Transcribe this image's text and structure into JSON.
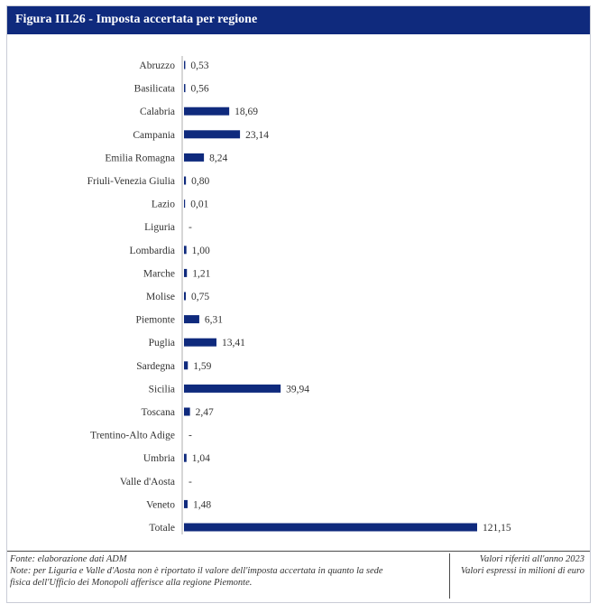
{
  "figure_title": "Figura III.26 - Imposta accertata per regione",
  "colors": {
    "bar": "#0f2a7d",
    "title_bg": "#0f2a7d",
    "text": "#333333"
  },
  "chart_data": {
    "type": "bar",
    "orientation": "horizontal",
    "title": "Imposta accertata per regione",
    "xlabel": "",
    "ylabel": "",
    "xlim": [
      0,
      121.15
    ],
    "grid": false,
    "legend": "none",
    "categories": [
      "Abruzzo",
      "Basilicata",
      "Calabria",
      "Campania",
      "Emilia Romagna",
      "Friuli-Venezia Giulia",
      "Lazio",
      "Liguria",
      "Lombardia",
      "Marche",
      "Molise",
      "Piemonte",
      "Puglia",
      "Sardegna",
      "Sicilia",
      "Toscana",
      "Trentino-Alto Adige",
      "Umbria",
      "Valle d'Aosta",
      "Veneto",
      "Totale"
    ],
    "values": [
      0.53,
      0.56,
      18.69,
      23.14,
      8.24,
      0.8,
      0.01,
      null,
      1.0,
      1.21,
      0.75,
      6.31,
      13.41,
      1.59,
      39.94,
      2.47,
      null,
      1.04,
      null,
      1.48,
      121.15
    ],
    "value_labels": [
      "0,53",
      "0,56",
      "18,69",
      "23,14",
      "8,24",
      "0,80",
      "0,01",
      "-",
      "1,00",
      "1,21",
      "0,75",
      "6,31",
      "13,41",
      "1,59",
      "39,94",
      "2,47",
      "-",
      "1,04",
      "-",
      "1,48",
      "121,15"
    ]
  },
  "footer": {
    "source": "Fonte: elaborazione dati ADM",
    "note_line1": "Note: per Liguria e Valle d'Aosta non è riportato il valore dell'imposta accertata in quanto la sede",
    "note_line2": "fisica dell'Ufficio dei Monopoli afferisce alla regione Piemonte.",
    "year_note": "Valori riferiti all'anno 2023",
    "unit_note": "Valori espressi in milioni di euro"
  }
}
